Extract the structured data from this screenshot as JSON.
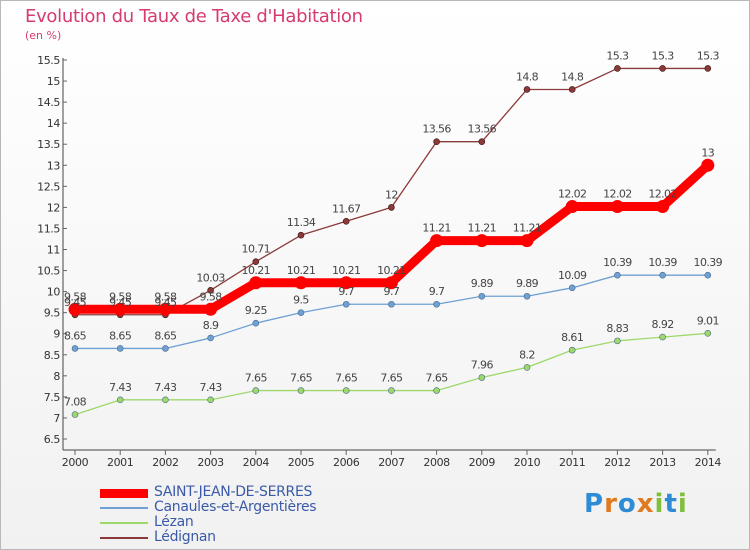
{
  "title": "Evolution du Taux de Taxe d'Habitation",
  "subtitle": "(en %)",
  "logo": {
    "text": "Proxiti",
    "letters": [
      "P",
      "r",
      "o",
      "x",
      "i",
      "t",
      "i"
    ],
    "colors": [
      "#2e8bd6",
      "#e07a1f",
      "#2e8bd6",
      "#e07a1f",
      "#7fbf3a",
      "#2e8bd6",
      "#7fbf3a"
    ]
  },
  "chart_data": {
    "type": "line",
    "x": [
      "2000",
      "2001",
      "2002",
      "2003",
      "2004",
      "2005",
      "2006",
      "2007",
      "2008",
      "2009",
      "2010",
      "2011",
      "2012",
      "2013",
      "2014"
    ],
    "ylim": [
      6.5,
      15.5
    ],
    "yticks": [
      "6.5",
      "7",
      "7.5",
      "8",
      "8.5",
      "9",
      "9.5",
      "10",
      "10.5",
      "11",
      "11.5",
      "12",
      "12.5",
      "13",
      "13.5",
      "14",
      "14.5",
      "15",
      "15.5"
    ],
    "grid": false,
    "legend_position": "bottom-left",
    "series": [
      {
        "name": "SAINT-JEAN-DE-SERRES",
        "color": "#ff0000",
        "values": [
          9.58,
          9.58,
          9.58,
          9.58,
          10.21,
          10.21,
          10.21,
          10.21,
          11.21,
          11.21,
          11.21,
          12.02,
          12.02,
          12.02,
          13
        ],
        "labels": [
          "9.58",
          "9.58",
          "9.58",
          "9.58",
          "10.21",
          "10.21",
          "10.21",
          "10.21",
          "11.21",
          "11.21",
          "11.21",
          "12.02",
          "12.02",
          "12.02",
          "13"
        ]
      },
      {
        "name": "Canaules-et-Argentières",
        "color": "#6fa0d4",
        "values": [
          8.65,
          8.65,
          8.65,
          8.9,
          9.25,
          9.5,
          9.7,
          9.7,
          9.7,
          9.89,
          9.89,
          10.09,
          10.39,
          10.39,
          10.39
        ],
        "labels": [
          "8.65",
          "8.65",
          "8.65",
          "8.9",
          "9.25",
          "9.5",
          "9.7",
          "9.7",
          "9.7",
          "9.89",
          "9.89",
          "10.09",
          "10.39",
          "10.39",
          "10.39"
        ]
      },
      {
        "name": "Lézan",
        "color": "#9dd86b",
        "values": [
          7.08,
          7.43,
          7.43,
          7.43,
          7.65,
          7.65,
          7.65,
          7.65,
          7.65,
          7.96,
          8.2,
          8.61,
          8.83,
          8.92,
          9.01
        ],
        "labels": [
          "7.08",
          "7.43",
          "7.43",
          "7.43",
          "7.65",
          "7.65",
          "7.65",
          "7.65",
          "7.65",
          "7.96",
          "8.2",
          "8.61",
          "8.83",
          "8.92",
          "9.01"
        ]
      },
      {
        "name": "Lédignan",
        "color": "#8b3a3a",
        "values": [
          9.45,
          9.45,
          9.45,
          10.03,
          10.71,
          11.34,
          11.67,
          12,
          13.56,
          13.56,
          14.8,
          14.8,
          15.3,
          15.3,
          15.3
        ],
        "labels": [
          "9.45",
          "9.45",
          "9.45",
          "10.03",
          "10.71",
          "11.34",
          "11.67",
          "12",
          "13.56",
          "13.56",
          "14.8",
          "14.8",
          "15.3",
          "15.3",
          "15.3"
        ]
      }
    ]
  }
}
